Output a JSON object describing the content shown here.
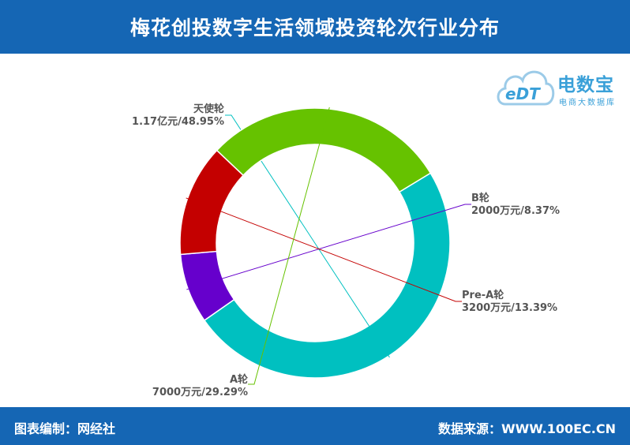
{
  "header": {
    "title": "梅花创投数字生活领域投资轮次行业分布"
  },
  "logo": {
    "brand": "电数宝",
    "sub": "电商大数据库",
    "mark": "eDT"
  },
  "footer": {
    "left": "图表编制：网经社",
    "right": "数据来源：WWW.100EC.CN"
  },
  "colors": {
    "header_bg": "#1566b4",
    "angel": "#00c0c0",
    "b_round": "#6600cc",
    "pre_a": "#c40000",
    "a_round": "#66c200"
  },
  "chart_data": {
    "type": "pie",
    "variant": "donut",
    "title": "梅花创投数字生活领域投资轮次行业分布",
    "series": [
      {
        "name": "天使轮",
        "value_label": "1.17亿元",
        "percent": 48.95,
        "percent_label": "48.95%",
        "color": "#00c0c0"
      },
      {
        "name": "B轮",
        "value_label": "2000万元",
        "percent": 8.37,
        "percent_label": "8.37%",
        "color": "#6600cc"
      },
      {
        "name": "Pre-A轮",
        "value_label": "3200万元",
        "percent": 13.39,
        "percent_label": "13.39%",
        "color": "#c40000"
      },
      {
        "name": "A轮",
        "value_label": "7000万元",
        "percent": 29.29,
        "percent_label": "29.29%",
        "color": "#66c200"
      }
    ]
  }
}
